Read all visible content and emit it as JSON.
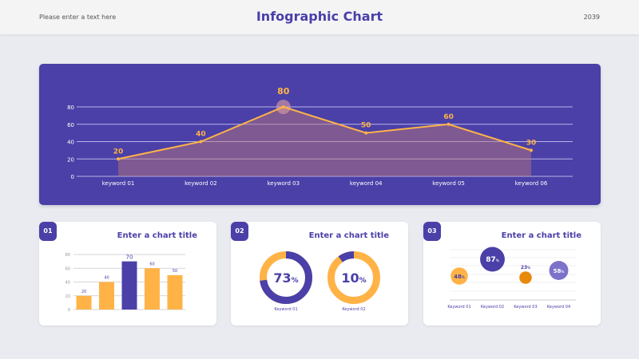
{
  "header": {
    "left_text": "Please enter a text here",
    "title": "Infographic Chart",
    "right_text": "2039"
  },
  "colors": {
    "primary": "#4a40a8",
    "accent": "#ffb347",
    "orange_dark": "#e8890c",
    "light_purple": "#7d72c9"
  },
  "chart_data": [
    {
      "type": "area",
      "title": "Enter a chart title",
      "categories": [
        "keyword 01",
        "keyword 02",
        "keyword 03",
        "keyword 04",
        "keyword 05",
        "keyword 06"
      ],
      "values": [
        20,
        40,
        80,
        50,
        60,
        30
      ],
      "data_labels": [
        "20",
        "40",
        "80",
        "50",
        "60",
        "30"
      ],
      "yticks": [
        "0",
        "20",
        "40",
        "60",
        "80"
      ],
      "ylim": [
        0,
        80
      ],
      "grid": true
    },
    {
      "type": "bar",
      "badge": "01",
      "title": "Enter a chart title",
      "values": [
        20,
        40,
        70,
        60,
        50
      ],
      "data_labels": [
        "20",
        "40",
        "70",
        "60",
        "50"
      ],
      "highlight_index": 2,
      "yticks": [
        "0",
        "20",
        "40",
        "60",
        "80"
      ],
      "ylim": [
        0,
        80
      ],
      "grid": true
    },
    {
      "type": "pie",
      "badge": "02",
      "title": "Enter a chart title",
      "items": [
        {
          "label": "Keyword 01",
          "value": 73,
          "text": "73",
          "unit": "%"
        },
        {
          "label": "Keyword 02",
          "value": 10,
          "text": "10",
          "unit": "%"
        }
      ]
    },
    {
      "type": "scatter",
      "badge": "03",
      "title": "Enter a chart title",
      "items": [
        {
          "label": "Keyword 01",
          "value": 48,
          "text": "48",
          "unit": "%",
          "color": "#ffb347"
        },
        {
          "label": "Keyword 02",
          "value": 87,
          "text": "87",
          "unit": "%",
          "color": "#4a40a8"
        },
        {
          "label": "Keyword 03",
          "value": 23,
          "text": "23",
          "unit": "%",
          "color": "#e8890c"
        },
        {
          "label": "Keyword 04",
          "value": 58,
          "text": "58",
          "unit": "%",
          "color": "#7d72c9"
        }
      ],
      "grid": true
    }
  ]
}
